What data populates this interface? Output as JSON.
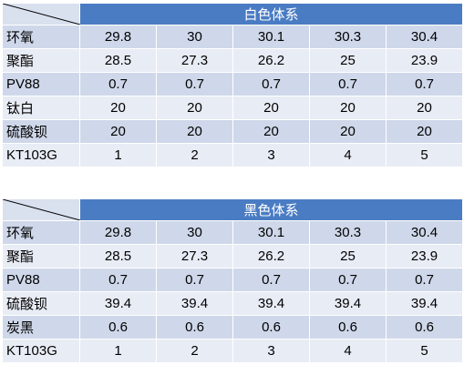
{
  "tables": [
    {
      "header": "白色体系",
      "rows": [
        {
          "label": "环氧",
          "values": [
            "29.8",
            "30",
            "30.1",
            "30.3",
            "30.4"
          ]
        },
        {
          "label": "聚酯",
          "values": [
            "28.5",
            "27.3",
            "26.2",
            "25",
            "23.9"
          ]
        },
        {
          "label": "PV88",
          "values": [
            "0.7",
            "0.7",
            "0.7",
            "0.7",
            "0.7"
          ]
        },
        {
          "label": "钛白",
          "values": [
            "20",
            "20",
            "20",
            "20",
            "20"
          ]
        },
        {
          "label": "硫酸钡",
          "values": [
            "20",
            "20",
            "20",
            "20",
            "20"
          ]
        },
        {
          "label": "KT103G",
          "values": [
            "1",
            "2",
            "3",
            "4",
            "5"
          ]
        }
      ]
    },
    {
      "header": "黑色体系",
      "rows": [
        {
          "label": "环氧",
          "values": [
            "29.8",
            "30",
            "30.1",
            "30.3",
            "30.4"
          ]
        },
        {
          "label": "聚酯",
          "values": [
            "28.5",
            "27.3",
            "26.2",
            "25",
            "23.9"
          ]
        },
        {
          "label": "PV88",
          "values": [
            "0.7",
            "0.7",
            "0.7",
            "0.7",
            "0.7"
          ]
        },
        {
          "label": "硫酸钡",
          "values": [
            "39.4",
            "39.4",
            "39.4",
            "39.4",
            "39.4"
          ]
        },
        {
          "label": "炭黑",
          "values": [
            "0.6",
            "0.6",
            "0.6",
            "0.6",
            "0.6"
          ]
        },
        {
          "label": "KT103G",
          "values": [
            "1",
            "2",
            "3",
            "4",
            "5"
          ]
        }
      ]
    }
  ]
}
